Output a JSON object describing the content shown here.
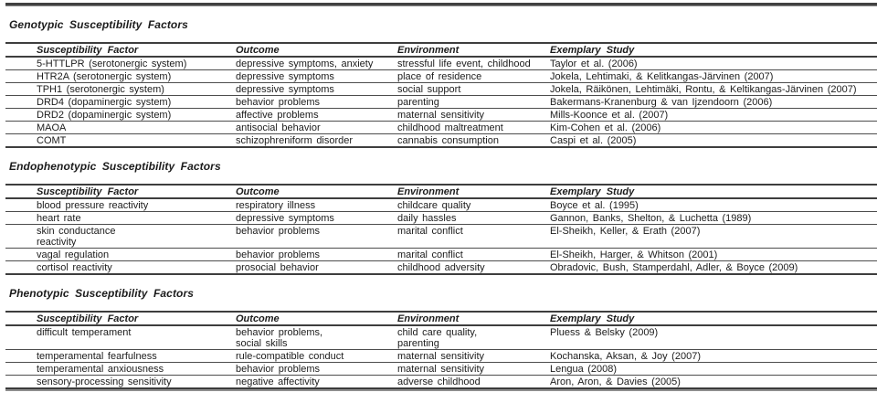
{
  "sections": [
    {
      "title": "Genotypic Susceptibility Factors",
      "headers": [
        "Susceptibility Factor",
        "Outcome",
        "Environment",
        "Exemplary Study"
      ],
      "rows": [
        {
          "factor": "5-HTTLPR (serotonergic system)",
          "outcome": "depressive symptoms, anxiety",
          "environment": "stressful life event, childhood",
          "study": "Taylor et al. (2006)"
        },
        {
          "factor": "HTR2A (serotonergic system)",
          "outcome": "depressive symptoms",
          "environment": "place of residence",
          "study": "Jokela, Lehtimaki, & Kelitkangas-Järvinen (2007)"
        },
        {
          "factor": "TPH1 (serotonergic system)",
          "outcome": "depressive symptoms",
          "environment": "social support",
          "study": "Jokela, Räikönen, Lehtimäki, Rontu, & Keltikangas-Järvinen (2007)"
        },
        {
          "factor": "DRD4 (dopaminergic system)",
          "outcome": "behavior problems",
          "environment": "parenting",
          "study": "Bakermans-Kranenburg & van Ijzendoorn (2006)"
        },
        {
          "factor": "DRD2 (dopaminergic system)",
          "outcome": "affective problems",
          "environment": "maternal sensitivity",
          "study": "Mills-Koonce et al. (2007)"
        },
        {
          "factor": "MAOA",
          "outcome": "antisocial behavior",
          "environment": "childhood maltreatment",
          "study": "Kim-Cohen et al. (2006)"
        },
        {
          "factor": "COMT",
          "outcome": "schizophreniform disorder",
          "environment": "cannabis consumption",
          "study": "Caspi et al. (2005)"
        }
      ]
    },
    {
      "title": "Endophenotypic Susceptibility Factors",
      "headers": [
        "Susceptibility Factor",
        "Outcome",
        "Environment",
        "Exemplary Study"
      ],
      "rows": [
        {
          "factor": "blood pressure reactivity",
          "outcome": "respiratory illness",
          "environment": "childcare quality",
          "study": "Boyce et al. (1995)"
        },
        {
          "factor": "heart rate",
          "outcome": "depressive symptoms",
          "environment": "daily hassles",
          "study": "Gannon, Banks, Shelton, & Luchetta (1989)"
        },
        {
          "factor": "skin conductance\nreactivity",
          "outcome": "behavior problems",
          "environment": "marital conflict",
          "study": "El-Sheikh, Keller, & Erath (2007)"
        },
        {
          "factor": "vagal regulation",
          "outcome": "behavior problems",
          "environment": "marital conflict",
          "study": "El-Sheikh, Harger, & Whitson (2001)"
        },
        {
          "factor": "cortisol reactivity",
          "outcome": "prosocial behavior",
          "environment": "childhood adversity",
          "study": "Obradovic, Bush, Stamperdahl, Adler, & Boyce (2009)"
        }
      ]
    },
    {
      "title": "Phenotypic Susceptibility Factors",
      "headers": [
        "Susceptibility Factor",
        "Outcome",
        "Environment",
        "Exemplary Study"
      ],
      "rows": [
        {
          "factor": "difficult temperament",
          "outcome": "behavior problems,\nsocial skills",
          "environment": "child care quality,\nparenting",
          "study": "Pluess & Belsky (2009)"
        },
        {
          "factor": "temperamental fearfulness",
          "outcome": "rule-compatible conduct",
          "environment": "maternal sensitivity",
          "study": "Kochanska, Aksan, & Joy (2007)"
        },
        {
          "factor": "temperamental anxiousness",
          "outcome": "behavior problems",
          "environment": "maternal sensitivity",
          "study": "Lengua (2008)"
        },
        {
          "factor": "sensory-processing sensitivity",
          "outcome": "negative affectivity",
          "environment": "adverse childhood",
          "study": "Aron, Aron, & Davies (2005)"
        }
      ]
    }
  ]
}
